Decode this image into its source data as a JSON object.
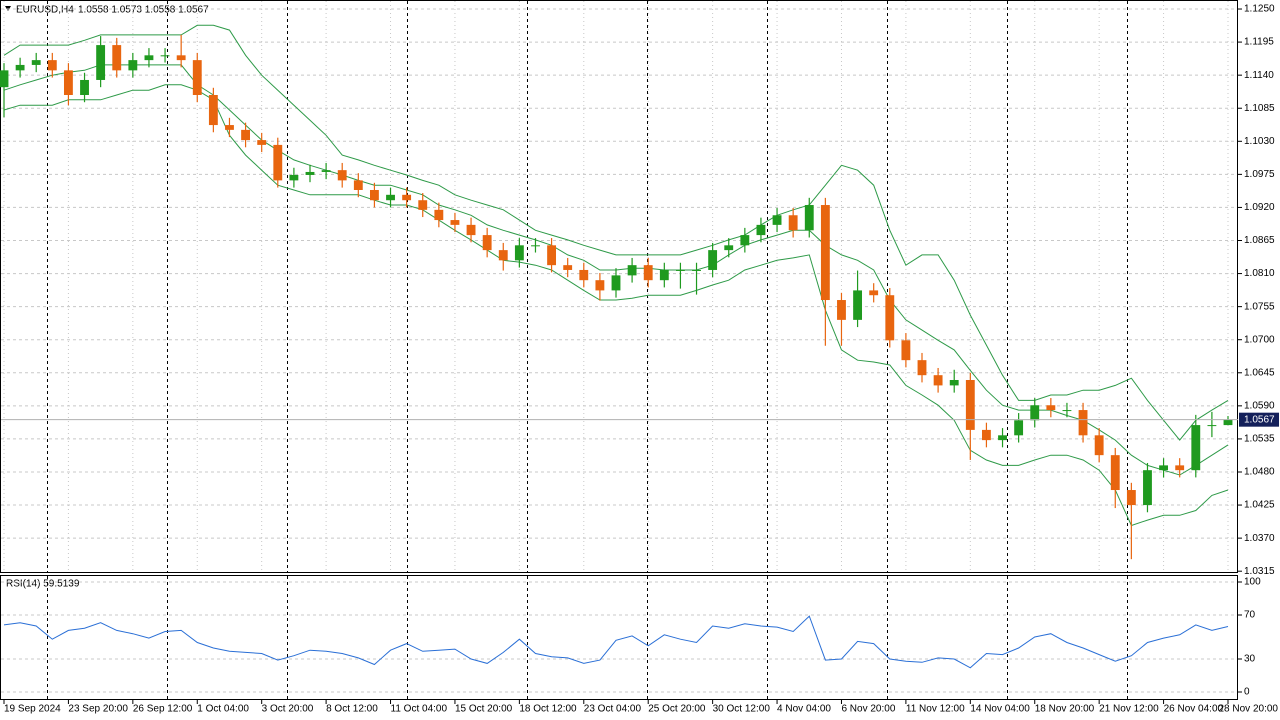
{
  "chart_data": [
    {
      "type": "candlestick",
      "title": "EURUSD,H4",
      "subtitle": "1.0558 1.0573 1.0558 1.0567",
      "categories": [
        "19 Sep 2024",
        null,
        null,
        null,
        "23 Sep 20:00",
        null,
        null,
        null,
        "26 Sep 12:00",
        null,
        null,
        null,
        "1 Oct 04:00",
        null,
        null,
        null,
        "3 Oct 20:00",
        null,
        null,
        null,
        "8 Oct 12:00",
        null,
        null,
        null,
        "11 Oct 04:00",
        null,
        null,
        null,
        "15 Oct 20:00",
        null,
        null,
        null,
        "18 Oct 12:00",
        null,
        null,
        null,
        "23 Oct 04:00",
        null,
        null,
        null,
        "25 Oct 20:00",
        null,
        null,
        null,
        "30 Oct 12:00",
        null,
        null,
        null,
        "4 Nov 04:00",
        null,
        null,
        null,
        "6 Nov 20:00",
        null,
        null,
        null,
        "11 Nov 12:00",
        null,
        null,
        null,
        "14 Nov 04:00",
        null,
        null,
        null,
        "18 Nov 20:00",
        null,
        null,
        null,
        "21 Nov 12:00",
        null,
        null,
        null,
        "26 Nov 04:00",
        null,
        null,
        null,
        "28 Nov 20:00"
      ],
      "open": [
        1.112,
        1.1148,
        1.1157,
        1.1165,
        1.1148,
        1.1107,
        1.1132,
        1.119,
        1.1148,
        1.1165,
        1.1173,
        1.1173,
        1.1165,
        1.1107,
        1.1057,
        1.1049,
        1.1032,
        1.1024,
        1.0965,
        1.0974,
        1.0979,
        1.0982,
        1.0965,
        1.0949,
        1.0932,
        1.0941,
        1.0932,
        1.0916,
        1.0899,
        1.0891,
        1.0874,
        1.0849,
        1.0832,
        1.0857,
        1.0857,
        1.0824,
        1.0816,
        1.0799,
        1.0782,
        1.0807,
        1.0824,
        1.0799,
        1.0816,
        1.0816,
        1.0816,
        1.0849,
        1.0857,
        1.0874,
        1.0891,
        1.0907,
        1.0882,
        1.0924,
        1.0766,
        1.0733,
        1.0782,
        1.0774,
        1.0699,
        1.0666,
        1.0641,
        1.0624,
        1.0633,
        1.055,
        1.0533,
        1.0541,
        1.0566,
        1.0591,
        1.0583,
        1.0583,
        1.0541,
        1.0508,
        1.045,
        1.0425,
        1.0483,
        1.0491,
        1.0483,
        1.0558,
        1.0558
      ],
      "high": [
        1.116,
        1.1169,
        1.1177,
        1.1177,
        1.116,
        1.1144,
        1.1205,
        1.1202,
        1.1177,
        1.1185,
        1.1185,
        1.1207,
        1.1177,
        1.1119,
        1.1069,
        1.1061,
        1.1044,
        1.1036,
        1.0986,
        1.0991,
        1.0994,
        1.0994,
        1.0977,
        1.0961,
        1.0953,
        1.0953,
        1.0944,
        1.0928,
        1.0911,
        1.0903,
        1.0886,
        1.0861,
        1.0869,
        1.0869,
        1.0869,
        1.0836,
        1.0828,
        1.0811,
        1.0819,
        1.0836,
        1.0836,
        1.0828,
        1.0828,
        1.0828,
        1.0861,
        1.0869,
        1.0886,
        1.0903,
        1.0919,
        1.0919,
        1.0936,
        1.0936,
        1.0778,
        1.0815,
        1.0794,
        1.0786,
        1.0711,
        1.0678,
        1.0653,
        1.065,
        1.0645,
        1.0562,
        1.0553,
        1.0578,
        1.0603,
        1.0603,
        1.0595,
        1.0595,
        1.0553,
        1.052,
        1.0462,
        1.0495,
        1.0503,
        1.0503,
        1.0575,
        1.058,
        1.0573
      ],
      "low": [
        1.107,
        1.1136,
        1.1145,
        1.1136,
        1.109,
        1.1095,
        1.112,
        1.1136,
        1.1136,
        1.1153,
        1.1161,
        1.1153,
        1.1095,
        1.1045,
        1.1037,
        1.102,
        1.1012,
        1.0953,
        1.0953,
        1.0962,
        1.0967,
        1.0953,
        1.0937,
        1.092,
        1.092,
        1.092,
        1.0904,
        1.0887,
        1.0879,
        1.0862,
        1.0837,
        1.0815,
        1.082,
        1.0845,
        1.0812,
        1.0804,
        1.0787,
        1.0765,
        1.077,
        1.0795,
        1.0787,
        1.0787,
        1.0785,
        1.0775,
        1.0804,
        1.0837,
        1.0845,
        1.0862,
        1.0879,
        1.087,
        1.087,
        1.069,
        1.069,
        1.0721,
        1.0762,
        1.0687,
        1.0654,
        1.0629,
        1.0612,
        1.0612,
        1.05,
        1.0521,
        1.0521,
        1.0529,
        1.0554,
        1.0571,
        1.0571,
        1.0529,
        1.0496,
        1.042,
        1.0335,
        1.0413,
        1.0471,
        1.0471,
        1.0471,
        1.0538,
        1.0558
      ],
      "close": [
        1.1148,
        1.1157,
        1.1165,
        1.1148,
        1.1107,
        1.1132,
        1.119,
        1.1148,
        1.1165,
        1.1173,
        1.1173,
        1.1165,
        1.1107,
        1.1057,
        1.1049,
        1.1032,
        1.1024,
        1.0965,
        1.0974,
        1.0979,
        1.0982,
        1.0965,
        1.0949,
        1.0932,
        1.0941,
        1.0932,
        1.0916,
        1.0899,
        1.0891,
        1.0874,
        1.0849,
        1.0832,
        1.0857,
        1.0857,
        1.0824,
        1.0816,
        1.0799,
        1.0782,
        1.0807,
        1.0824,
        1.0799,
        1.0816,
        1.0816,
        1.0816,
        1.0849,
        1.0857,
        1.0874,
        1.0891,
        1.0907,
        1.0882,
        1.0924,
        1.0766,
        1.0733,
        1.0782,
        1.0774,
        1.0699,
        1.0666,
        1.0641,
        1.0624,
        1.0633,
        1.055,
        1.0533,
        1.0541,
        1.0566,
        1.0591,
        1.0583,
        1.0583,
        1.0541,
        1.0508,
        1.045,
        1.0425,
        1.0483,
        1.0491,
        1.0483,
        1.0558,
        1.0558,
        1.0567
      ],
      "up_color": "#1f9a1f",
      "down_color": "#e8650f",
      "overlay_color": "#2e9a48",
      "overlays": [
        {
          "values": [
            1.1173,
            1.119,
            1.119,
            1.119,
            1.119,
            1.1198,
            1.1207,
            1.1207,
            1.1207,
            1.1207,
            1.1207,
            1.1207,
            1.1223,
            1.1223,
            1.1215,
            1.1173,
            1.114,
            1.1115,
            1.109,
            1.1065,
            1.104,
            1.1007,
            1.0999,
            1.099,
            1.0982,
            1.0974,
            1.0965,
            1.0957,
            1.0941,
            1.0932,
            1.0924,
            1.0916,
            1.0899,
            1.0882,
            1.0874,
            1.0866,
            1.0857,
            1.0849,
            1.0841,
            1.0841,
            1.0841,
            1.0841,
            1.0841,
            1.0849,
            1.0857,
            1.0866,
            1.0874,
            1.0891,
            1.0907,
            1.0916,
            1.0924,
            1.0957,
            1.099,
            1.0982,
            1.0957,
            1.0882,
            1.0824,
            1.0841,
            1.0841,
            1.0799,
            1.0741,
            1.0691,
            1.0641,
            1.0599,
            1.0599,
            1.0608,
            1.0608,
            1.0616,
            1.0616,
            1.0624,
            1.0636,
            1.0599,
            1.0566,
            1.0533,
            1.0566,
            1.0583,
            1.0599
          ]
        },
        {
          "values": [
            1.1115,
            1.1124,
            1.1132,
            1.114,
            1.1145,
            1.1148,
            1.1157,
            1.1157,
            1.1157,
            1.1157,
            1.1157,
            1.1157,
            1.1124,
            1.1107,
            1.1082,
            1.1057,
            1.1032,
            1.1015,
            1.0999,
            1.099,
            1.0982,
            1.0974,
            1.0965,
            1.0957,
            1.0957,
            1.0949,
            1.0941,
            1.0924,
            1.0916,
            1.0907,
            1.0891,
            1.0882,
            1.0874,
            1.0866,
            1.0857,
            1.0841,
            1.0832,
            1.0816,
            1.0816,
            1.0819,
            1.0819,
            1.0816,
            1.0816,
            1.0816,
            1.0824,
            1.0841,
            1.0857,
            1.0866,
            1.0874,
            1.0882,
            1.0882,
            1.0857,
            1.0841,
            1.0832,
            1.0816,
            1.0766,
            1.0733,
            1.0716,
            1.0699,
            1.0683,
            1.0649,
            1.0616,
            1.0591,
            1.0583,
            1.0583,
            1.0583,
            1.0574,
            1.0566,
            1.055,
            1.0533,
            1.0508,
            1.0491,
            1.0483,
            1.0475,
            1.0491,
            1.0508,
            1.0525
          ]
        },
        {
          "values": [
            1.1082,
            1.109,
            1.109,
            1.109,
            1.1099,
            1.1099,
            1.1099,
            1.1107,
            1.1115,
            1.1115,
            1.1124,
            1.1124,
            1.1115,
            1.1099,
            1.104,
            1.1007,
            1.0982,
            1.0957,
            1.0949,
            1.0941,
            1.0941,
            1.0941,
            1.0941,
            1.0932,
            1.0924,
            1.0924,
            1.0916,
            1.0899,
            1.0882,
            1.0866,
            1.0849,
            1.0832,
            1.0829,
            1.0824,
            1.0816,
            1.0799,
            1.0782,
            1.0766,
            1.0766,
            1.0769,
            1.0774,
            1.0774,
            1.0774,
            1.0782,
            1.0791,
            1.0799,
            1.0816,
            1.0824,
            1.0832,
            1.0836,
            1.0841,
            1.0749,
            1.0683,
            1.0666,
            1.0663,
            1.0658,
            1.0624,
            1.0608,
            1.0591,
            1.0566,
            1.0516,
            1.05,
            1.0491,
            1.0491,
            1.05,
            1.0508,
            1.0508,
            1.05,
            1.0483,
            1.045,
            1.0391,
            1.04,
            1.0408,
            1.0408,
            1.0416,
            1.0441,
            1.045
          ]
        }
      ],
      "price_label": {
        "value": 1.0567,
        "label": "1.0567"
      },
      "ylim": [
        1.0312,
        1.1265
      ],
      "yticks": [
        {
          "value": 1.125,
          "label": "1.1250"
        },
        {
          "value": 1.1195,
          "label": "1.1195"
        },
        {
          "value": 1.114,
          "label": "1.1140"
        },
        {
          "value": 1.1085,
          "label": "1.1085"
        },
        {
          "value": 1.103,
          "label": "1.1030"
        },
        {
          "value": 1.0975,
          "label": "1.0975"
        },
        {
          "value": 1.092,
          "label": "1.0920"
        },
        {
          "value": 1.0865,
          "label": "1.0865"
        },
        {
          "value": 1.081,
          "label": "1.0810"
        },
        {
          "value": 1.0755,
          "label": "1.0755"
        },
        {
          "value": 1.07,
          "label": "1.0700"
        },
        {
          "value": 1.0645,
          "label": "1.0645"
        },
        {
          "value": 1.059,
          "label": "1.0590"
        },
        {
          "value": 1.0535,
          "label": "1.0535"
        },
        {
          "value": 1.048,
          "label": "1.0480"
        },
        {
          "value": 1.0425,
          "label": "1.0425"
        },
        {
          "value": 1.037,
          "label": "1.0370"
        },
        {
          "value": 1.0315,
          "label": "1.0315"
        }
      ],
      "grid": true
    },
    {
      "type": "line",
      "title": "RSI(14) 59.5139",
      "values": [
        61,
        63,
        60,
        48,
        56,
        58,
        63,
        56,
        53,
        49,
        55,
        56,
        45,
        40,
        37,
        36,
        35,
        29,
        33,
        38,
        37,
        35,
        31,
        25,
        38,
        44,
        37,
        38,
        39,
        30,
        26,
        36,
        48,
        35,
        32,
        31,
        26,
        29,
        47,
        51,
        42,
        52,
        48,
        45,
        60,
        58,
        62,
        60,
        59,
        55,
        69,
        29,
        30,
        46,
        44,
        30,
        28,
        27,
        31,
        30,
        22,
        35,
        34,
        40,
        50,
        53,
        45,
        40,
        34,
        28,
        33,
        45,
        49,
        52,
        61,
        56,
        59.5139
      ],
      "color": "#2a6fd6",
      "ylim": [
        0,
        100
      ],
      "yticks": [
        100,
        70,
        30,
        0
      ],
      "grid": true
    }
  ]
}
